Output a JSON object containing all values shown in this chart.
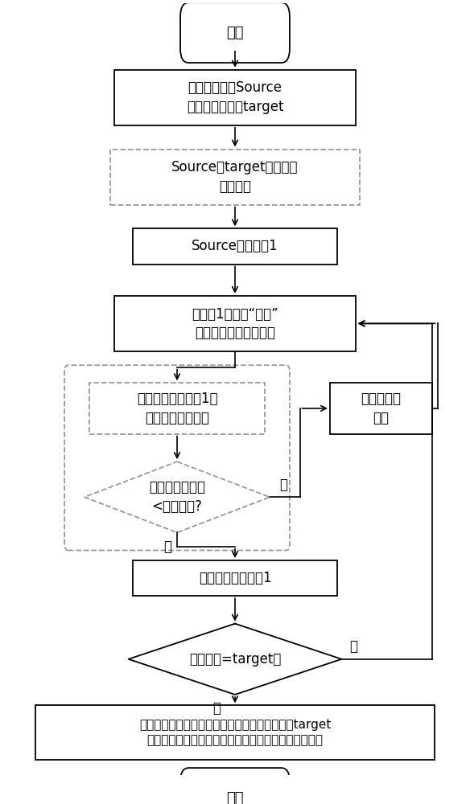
{
  "bg_color": "#ffffff",
  "text_color": "#000000",
  "box_edge_color": "#000000",
  "dashed_edge_color": "#888888",
  "start_text": "开始",
  "end_text": "结束",
  "step1_text": "源端点标记为Source\n目标端点标记为target",
  "step2_text": "Source、target遍历整个\n网络拓扑",
  "step3_text": "Source设为节点1",
  "step4_text": "将节点1标记为“永久”\n更新附近的状态标记集",
  "step5_text": "寻找并连接与节点1权\n重最小的临时节点",
  "side_text": "暂时屏蔽此\n链路",
  "diamond1_text": "此链路负载参数\n<负载阈値?",
  "step6_text": "将其设为临时节点1",
  "diamond2_text": "临时节点=target？",
  "step7_text": "根据状态记录集中的信息重复此步骤，直到找到target\n根据整体网络拓扑确定这些临时节点代表最佳路径节点",
  "yes_text": "是",
  "no_text": "否"
}
